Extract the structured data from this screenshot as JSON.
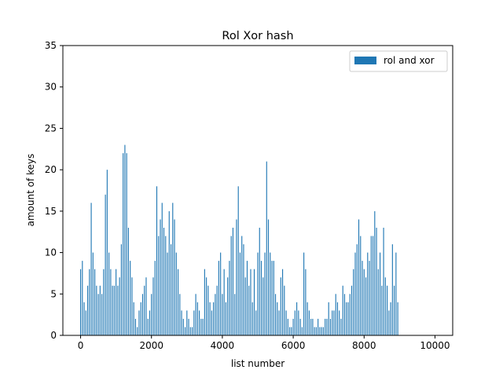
{
  "chart_data": {
    "type": "bar",
    "title": "Rol Xor hash",
    "xlabel": "list number",
    "ylabel": "amount of keys",
    "xlim": [
      -500,
      10500
    ],
    "ylim": [
      0,
      35
    ],
    "xticks": [
      0,
      2000,
      4000,
      6000,
      8000,
      10000
    ],
    "yticks": [
      0,
      5,
      10,
      15,
      20,
      25,
      30,
      35
    ],
    "bar_width": 25,
    "grid": false,
    "legend_position": "top-right",
    "series": [
      {
        "name": "rol and xor",
        "color": "#1f77b4",
        "x_start": 0,
        "x_step": 50,
        "values": [
          8,
          9,
          4,
          3,
          6,
          8,
          16,
          10,
          8,
          6,
          5,
          6,
          5,
          8,
          17,
          20,
          10,
          8,
          6,
          6,
          8,
          6,
          7,
          11,
          22,
          23,
          22,
          13,
          9,
          7,
          4,
          2,
          1,
          3,
          4,
          5,
          6,
          7,
          2,
          3,
          5,
          7,
          9,
          18,
          12,
          14,
          16,
          13,
          12,
          10,
          15,
          11,
          16,
          14,
          10,
          8,
          5,
          3,
          2,
          1,
          3,
          2,
          1,
          1,
          3,
          5,
          4,
          3,
          2,
          2,
          8,
          7,
          6,
          4,
          3,
          4,
          5,
          6,
          9,
          10,
          5,
          8,
          4,
          7,
          9,
          12,
          13,
          5,
          14,
          18,
          10,
          12,
          11,
          7,
          9,
          6,
          8,
          4,
          8,
          3,
          10,
          13,
          9,
          7,
          10,
          21,
          14,
          10,
          9,
          9,
          5,
          4,
          3,
          7,
          8,
          6,
          3,
          2,
          1,
          1,
          2,
          3,
          4,
          3,
          2,
          1,
          10,
          8,
          4,
          3,
          2,
          2,
          1,
          1,
          2,
          1,
          1,
          1,
          2,
          2,
          4,
          2,
          3,
          3,
          5,
          4,
          3,
          2,
          6,
          5,
          4,
          4,
          5,
          6,
          8,
          10,
          11,
          14,
          12,
          9,
          8,
          7,
          10,
          9,
          12,
          12,
          15,
          13,
          8,
          10,
          6,
          13,
          7,
          6,
          3,
          4,
          11,
          6,
          10,
          4
        ]
      }
    ]
  }
}
